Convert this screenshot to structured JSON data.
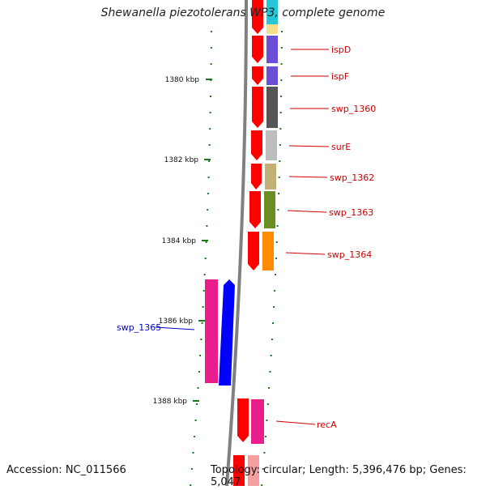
{
  "title": "Shewanella piezotolerans WP3, complete genome",
  "footer": {
    "accession": "Accession: NC_011566",
    "summary": "Topology: circular; Length: 5,396,476 bp; Genes: 5,047"
  },
  "ticks": [
    "1380 kbp",
    "1382 kbp",
    "1384 kbp",
    "1386 kbp",
    "1388 kbp"
  ],
  "colors": {
    "forward_strand": "#ff0000",
    "reverse_strand": "#0000ff",
    "backbone": "#808080",
    "tick": "#1a7a1a",
    "label_forward": "#cc0000",
    "label_reverse": "#0000cc"
  },
  "genes": [
    {
      "label": "",
      "color": "#27c6d6"
    },
    {
      "label": "",
      "color": "#f4e08a"
    },
    {
      "label": "ispD",
      "color": "#6a4fd6"
    },
    {
      "label": "ispF",
      "color": "#6a4fd6"
    },
    {
      "label": "swp_1360",
      "color": "#555555"
    },
    {
      "label": "surE",
      "color": "#bdbdbd"
    },
    {
      "label": "swp_1362",
      "color": "#c2b074"
    },
    {
      "label": "swp_1363",
      "color": "#6b8e23"
    },
    {
      "label": "swp_1364",
      "color": "#ff8c00"
    },
    {
      "label": "swp_1365",
      "color": "#e91e8c"
    },
    {
      "label": "recA",
      "color": "#e91e8c"
    },
    {
      "label": "",
      "color": "#f4a0a0"
    }
  ]
}
